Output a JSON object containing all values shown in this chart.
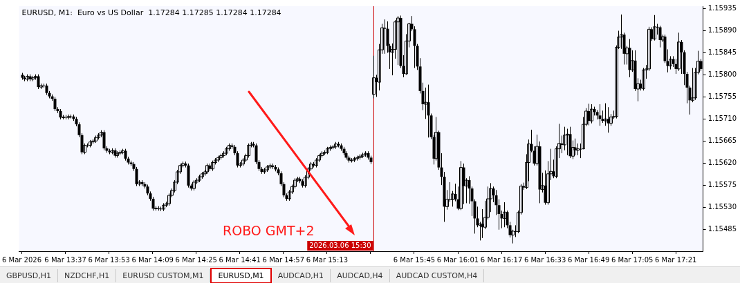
{
  "chart_data": {
    "type": "candlestick",
    "title": "EURUSD, M1:  Euro vs US Dollar  1.17284 1.17285 1.17284 1.17284",
    "color": "#000000",
    "annotations": [
      "ROBO GMT+2",
      "GBPUSD,H1",
      "NZDCHF,H1",
      "EURUSD CUSTOM,M1",
      "EURUSD,M1",
      "AUDCAD,H1",
      "AUDCAD,H4",
      "AUDCAD CUSTOM,H4"
    ],
    "xlim": [
      "2026-03-06T13:20",
      "2026-03-06T17:31"
    ],
    "xticks": [
      {
        "value": "2026-03-06T13:21",
        "label": "6 Mar 2026"
      },
      {
        "value": "2026-03-06T13:37",
        "label": "6 Mar 13:37"
      },
      {
        "value": "2026-03-06T13:53",
        "label": "6 Mar 13:53"
      },
      {
        "value": "2026-03-06T14:09",
        "label": "6 Mar 14:09"
      },
      {
        "value": "2026-03-06T14:25",
        "label": "6 Mar 14:25"
      },
      {
        "value": "2026-03-06T14:41",
        "label": "6 Mar 14:41"
      },
      {
        "value": "2026-03-06T14:57",
        "label": "6 Mar 14:57"
      },
      {
        "value": "2026-03-06T15:13",
        "label": "6 Mar 15:13"
      },
      {
        "value": "2026-03-06T15:29",
        "label": null
      },
      {
        "value": "2026-03-06T15:45",
        "label": "6 Mar 15:45"
      },
      {
        "value": "2026-03-06T16:01",
        "label": "6 Mar 16:01"
      },
      {
        "value": "2026-03-06T16:17",
        "label": "6 Mar 16:17"
      },
      {
        "value": "2026-03-06T16:33",
        "label": "6 Mar 16:33"
      },
      {
        "value": "2026-03-06T16:49",
        "label": "6 Mar 16:49"
      },
      {
        "value": "2026-03-06T17:05",
        "label": "6 Mar 17:05"
      },
      {
        "value": "2026-03-06T17:21",
        "label": "6 Mar 17:21"
      }
    ],
    "ylim": [
      1.1544,
      1.1594
    ],
    "yticks": [
      {
        "value": 1.15485,
        "label": "1.15485"
      },
      {
        "value": 1.1553,
        "label": "1.15530"
      },
      {
        "value": 1.15575,
        "label": "1.15575"
      },
      {
        "value": 1.1562,
        "label": "1.15620"
      },
      {
        "value": 1.15665,
        "label": "1.15665"
      },
      {
        "value": 1.1571,
        "label": "1.15710"
      },
      {
        "value": 1.15755,
        "label": "1.15755"
      },
      {
        "value": 1.158,
        "label": "1.15800"
      },
      {
        "value": 1.15845,
        "label": "1.15845"
      },
      {
        "value": 1.1589,
        "label": "1.15890"
      },
      {
        "value": 1.15935,
        "label": "1.15935"
      }
    ],
    "ref_lines": [
      {
        "axis": "x",
        "value": "2026-03-06T15:30",
        "label": "2026.03.06 15:30",
        "color": "#cc0000"
      }
    ],
    "x": [
      "2026-03-06T13:21",
      "2026-03-06T13:22",
      "2026-03-06T13:23",
      "2026-03-06T13:24",
      "2026-03-06T13:25",
      "2026-03-06T13:26",
      "2026-03-06T13:27",
      "2026-03-06T13:28",
      "2026-03-06T13:29",
      "2026-03-06T13:30",
      "2026-03-06T13:31",
      "2026-03-06T13:32",
      "2026-03-06T13:33",
      "2026-03-06T13:34",
      "2026-03-06T13:35",
      "2026-03-06T13:36",
      "2026-03-06T13:37",
      "2026-03-06T13:38",
      "2026-03-06T13:39",
      "2026-03-06T13:40",
      "2026-03-06T13:41",
      "2026-03-06T13:42",
      "2026-03-06T13:43",
      "2026-03-06T13:44",
      "2026-03-06T13:45",
      "2026-03-06T13:46",
      "2026-03-06T13:47",
      "2026-03-06T13:48",
      "2026-03-06T13:49",
      "2026-03-06T13:50",
      "2026-03-06T13:51",
      "2026-03-06T13:52",
      "2026-03-06T13:53",
      "2026-03-06T13:54",
      "2026-03-06T13:55",
      "2026-03-06T13:56",
      "2026-03-06T13:57",
      "2026-03-06T13:58",
      "2026-03-06T13:59",
      "2026-03-06T14:00",
      "2026-03-06T14:01",
      "2026-03-06T14:02",
      "2026-03-06T14:03",
      "2026-03-06T14:04",
      "2026-03-06T14:05",
      "2026-03-06T14:06",
      "2026-03-06T14:07",
      "2026-03-06T14:08",
      "2026-03-06T14:09",
      "2026-03-06T14:10",
      "2026-03-06T14:11",
      "2026-03-06T14:12",
      "2026-03-06T14:13",
      "2026-03-06T14:14",
      "2026-03-06T14:15",
      "2026-03-06T14:16",
      "2026-03-06T14:17",
      "2026-03-06T14:18",
      "2026-03-06T14:19",
      "2026-03-06T14:20",
      "2026-03-06T14:21",
      "2026-03-06T14:22",
      "2026-03-06T14:23",
      "2026-03-06T14:24",
      "2026-03-06T14:25",
      "2026-03-06T14:26",
      "2026-03-06T14:27",
      "2026-03-06T14:28",
      "2026-03-06T14:29",
      "2026-03-06T14:30",
      "2026-03-06T14:31",
      "2026-03-06T14:32",
      "2026-03-06T14:33",
      "2026-03-06T14:34",
      "2026-03-06T14:35",
      "2026-03-06T14:36",
      "2026-03-06T14:37",
      "2026-03-06T14:38",
      "2026-03-06T14:39",
      "2026-03-06T14:40",
      "2026-03-06T14:41",
      "2026-03-06T14:42",
      "2026-03-06T14:43",
      "2026-03-06T14:44",
      "2026-03-06T14:45",
      "2026-03-06T14:46",
      "2026-03-06T14:47",
      "2026-03-06T14:48",
      "2026-03-06T14:49",
      "2026-03-06T14:50",
      "2026-03-06T14:51",
      "2026-03-06T14:52",
      "2026-03-06T14:53",
      "2026-03-06T14:54",
      "2026-03-06T14:55",
      "2026-03-06T14:56",
      "2026-03-06T14:57",
      "2026-03-06T14:58",
      "2026-03-06T14:59",
      "2026-03-06T15:00",
      "2026-03-06T15:01",
      "2026-03-06T15:02",
      "2026-03-06T15:03",
      "2026-03-06T15:04",
      "2026-03-06T15:05",
      "2026-03-06T15:06",
      "2026-03-06T15:07",
      "2026-03-06T15:08",
      "2026-03-06T15:09",
      "2026-03-06T15:10",
      "2026-03-06T15:11",
      "2026-03-06T15:12",
      "2026-03-06T15:13",
      "2026-03-06T15:14",
      "2026-03-06T15:15",
      "2026-03-06T15:16",
      "2026-03-06T15:17",
      "2026-03-06T15:18",
      "2026-03-06T15:19",
      "2026-03-06T15:20",
      "2026-03-06T15:21",
      "2026-03-06T15:22",
      "2026-03-06T15:23",
      "2026-03-06T15:24",
      "2026-03-06T15:25",
      "2026-03-06T15:26",
      "2026-03-06T15:27",
      "2026-03-06T15:28",
      "2026-03-06T15:29",
      "2026-03-06T15:30",
      "2026-03-06T15:31",
      "2026-03-06T15:32",
      "2026-03-06T15:33",
      "2026-03-06T15:34",
      "2026-03-06T15:35",
      "2026-03-06T15:36",
      "2026-03-06T15:37",
      "2026-03-06T15:38",
      "2026-03-06T15:39",
      "2026-03-06T15:40",
      "2026-03-06T15:41",
      "2026-03-06T15:42",
      "2026-03-06T15:43",
      "2026-03-06T15:44",
      "2026-03-06T15:45",
      "2026-03-06T15:46",
      "2026-03-06T15:47",
      "2026-03-06T15:48",
      "2026-03-06T15:49",
      "2026-03-06T15:50",
      "2026-03-06T15:51",
      "2026-03-06T15:52",
      "2026-03-06T15:53",
      "2026-03-06T15:54",
      "2026-03-06T15:55",
      "2026-03-06T15:56",
      "2026-03-06T15:57",
      "2026-03-06T15:58",
      "2026-03-06T15:59",
      "2026-03-06T16:00",
      "2026-03-06T16:01",
      "2026-03-06T16:02",
      "2026-03-06T16:03",
      "2026-03-06T16:04",
      "2026-03-06T16:05",
      "2026-03-06T16:06",
      "2026-03-06T16:07",
      "2026-03-06T16:08",
      "2026-03-06T16:09",
      "2026-03-06T16:10",
      "2026-03-06T16:11",
      "2026-03-06T16:12",
      "2026-03-06T16:13",
      "2026-03-06T16:14",
      "2026-03-06T16:15",
      "2026-03-06T16:16",
      "2026-03-06T16:17",
      "2026-03-06T16:18",
      "2026-03-06T16:19",
      "2026-03-06T16:20",
      "2026-03-06T16:21",
      "2026-03-06T16:22",
      "2026-03-06T16:23",
      "2026-03-06T16:24",
      "2026-03-06T16:25",
      "2026-03-06T16:26",
      "2026-03-06T16:27",
      "2026-03-06T16:28",
      "2026-03-06T16:29",
      "2026-03-06T16:30",
      "2026-03-06T16:31",
      "2026-03-06T16:32",
      "2026-03-06T16:33",
      "2026-03-06T16:34",
      "2026-03-06T16:35",
      "2026-03-06T16:36",
      "2026-03-06T16:37",
      "2026-03-06T16:38",
      "2026-03-06T16:39",
      "2026-03-06T16:40",
      "2026-03-06T16:41",
      "2026-03-06T16:42",
      "2026-03-06T16:43",
      "2026-03-06T16:44",
      "2026-03-06T16:45",
      "2026-03-06T16:46",
      "2026-03-06T16:47",
      "2026-03-06T16:48",
      "2026-03-06T16:49",
      "2026-03-06T16:50",
      "2026-03-06T16:51",
      "2026-03-06T16:52",
      "2026-03-06T16:53",
      "2026-03-06T16:54",
      "2026-03-06T16:55",
      "2026-03-06T16:56",
      "2026-03-06T16:57",
      "2026-03-06T16:58",
      "2026-03-06T16:59",
      "2026-03-06T17:00",
      "2026-03-06T17:01",
      "2026-03-06T17:02",
      "2026-03-06T17:03",
      "2026-03-06T17:04",
      "2026-03-06T17:05",
      "2026-03-06T17:06",
      "2026-03-06T17:07",
      "2026-03-06T17:08",
      "2026-03-06T17:09",
      "2026-03-06T17:10",
      "2026-03-06T17:11",
      "2026-03-06T17:12",
      "2026-03-06T17:13",
      "2026-03-06T17:14",
      "2026-03-06T17:15",
      "2026-03-06T17:16",
      "2026-03-06T17:17",
      "2026-03-06T17:18",
      "2026-03-06T17:19",
      "2026-03-06T17:20",
      "2026-03-06T17:21",
      "2026-03-06T17:22",
      "2026-03-06T17:23",
      "2026-03-06T17:24",
      "2026-03-06T17:25",
      "2026-03-06T17:26",
      "2026-03-06T17:27",
      "2026-03-06T17:28",
      "2026-03-06T17:29",
      "2026-03-06T17:30"
    ],
    "ohlc": [
      [
        1.158,
        1.15804,
        1.1579,
        1.15794
      ],
      [
        1.15794,
        1.15798,
        1.15787,
        1.15791
      ],
      [
        1.15791,
        1.15801,
        1.15787,
        1.15797
      ],
      [
        1.15797,
        1.15801,
        1.15787,
        1.15791
      ],
      [
        1.15791,
        1.15798,
        1.15787,
        1.15794
      ],
      [
        1.15794,
        1.15801,
        1.1579,
        1.15797
      ],
      [
        1.15797,
        1.15801,
        1.15771,
        1.15775
      ],
      [
        1.15775,
        1.15782,
        1.15771,
        1.15778
      ],
      [
        1.15778,
        1.15782,
        1.15774,
        1.15778
      ],
      [
        1.15778,
        1.15782,
        1.15759,
        1.15763
      ],
      [
        1.15763,
        1.15767,
        1.15752,
        1.15756
      ],
      [
        1.15756,
        1.1576,
        1.15747,
        1.15751
      ],
      [
        1.15751,
        1.15755,
        1.15726,
        1.1573
      ],
      [
        1.1573,
        1.15734,
        1.15722,
        1.15726
      ],
      [
        1.15726,
        1.1573,
        1.15709,
        1.15713
      ],
      [
        1.15713,
        1.15718,
        1.15709,
        1.15714
      ],
      [
        1.15714,
        1.15718,
        1.15709,
        1.15713
      ],
      [
        1.15713,
        1.15719,
        1.15709,
        1.15715
      ],
      [
        1.15715,
        1.15719,
        1.15711,
        1.15715
      ],
      [
        1.15715,
        1.15719,
        1.15706,
        1.1571
      ],
      [
        1.1571,
        1.15714,
        1.15695,
        1.15699
      ],
      [
        1.15699,
        1.15703,
        1.15673,
        1.15677
      ],
      [
        1.15677,
        1.15681,
        1.15638,
        1.15642
      ],
      [
        1.15642,
        1.1566,
        1.15638,
        1.15656
      ],
      [
        1.15656,
        1.1566,
        1.15652,
        1.15656
      ],
      [
        1.15656,
        1.15667,
        1.15652,
        1.15663
      ],
      [
        1.15663,
        1.15669,
        1.15659,
        1.15665
      ],
      [
        1.15665,
        1.15676,
        1.15661,
        1.15672
      ],
      [
        1.15672,
        1.15681,
        1.15668,
        1.15677
      ],
      [
        1.15677,
        1.15687,
        1.15673,
        1.15683
      ],
      [
        1.15683,
        1.15687,
        1.15646,
        1.1565
      ],
      [
        1.1565,
        1.15654,
        1.15641,
        1.15645
      ],
      [
        1.15645,
        1.15649,
        1.15638,
        1.15642
      ],
      [
        1.15642,
        1.1565,
        1.15638,
        1.15646
      ],
      [
        1.15646,
        1.1565,
        1.15631,
        1.15635
      ],
      [
        1.15635,
        1.15644,
        1.15631,
        1.1564
      ],
      [
        1.1564,
        1.15646,
        1.15636,
        1.15642
      ],
      [
        1.15642,
        1.15649,
        1.15638,
        1.15645
      ],
      [
        1.15645,
        1.15649,
        1.15625,
        1.15629
      ],
      [
        1.15629,
        1.15633,
        1.15617,
        1.15621
      ],
      [
        1.15621,
        1.15625,
        1.15614,
        1.15618
      ],
      [
        1.15618,
        1.15622,
        1.15604,
        1.15608
      ],
      [
        1.15608,
        1.15612,
        1.15573,
        1.15577
      ],
      [
        1.15577,
        1.15585,
        1.15573,
        1.15581
      ],
      [
        1.15581,
        1.15585,
        1.15573,
        1.15577
      ],
      [
        1.15577,
        1.15581,
        1.15568,
        1.15572
      ],
      [
        1.15572,
        1.15576,
        1.15554,
        1.15558
      ],
      [
        1.15558,
        1.15562,
        1.15543,
        1.15547
      ],
      [
        1.15547,
        1.15551,
        1.15523,
        1.15527
      ],
      [
        1.15527,
        1.15532,
        1.15523,
        1.15528
      ],
      [
        1.15528,
        1.15532,
        1.15523,
        1.15527
      ],
      [
        1.15527,
        1.15531,
        1.15522,
        1.15526
      ],
      [
        1.15526,
        1.15538,
        1.15522,
        1.15534
      ],
      [
        1.15534,
        1.15541,
        1.1553,
        1.15537
      ],
      [
        1.15537,
        1.15558,
        1.15533,
        1.15554
      ],
      [
        1.15554,
        1.15568,
        1.1555,
        1.15564
      ],
      [
        1.15564,
        1.15585,
        1.1556,
        1.15581
      ],
      [
        1.15581,
        1.15606,
        1.15577,
        1.15602
      ],
      [
        1.15602,
        1.15619,
        1.15598,
        1.15615
      ],
      [
        1.15615,
        1.15623,
        1.15611,
        1.15619
      ],
      [
        1.15619,
        1.15623,
        1.15611,
        1.15615
      ],
      [
        1.15615,
        1.15619,
        1.1557,
        1.15574
      ],
      [
        1.15574,
        1.15578,
        1.15564,
        1.15568
      ],
      [
        1.15568,
        1.15585,
        1.15564,
        1.15581
      ],
      [
        1.15581,
        1.15589,
        1.15577,
        1.15585
      ],
      [
        1.15585,
        1.15596,
        1.15581,
        1.15592
      ],
      [
        1.15592,
        1.15602,
        1.15588,
        1.15598
      ],
      [
        1.15598,
        1.15606,
        1.15594,
        1.15602
      ],
      [
        1.15602,
        1.15619,
        1.15598,
        1.15615
      ],
      [
        1.15615,
        1.15619,
        1.15604,
        1.15608
      ],
      [
        1.15608,
        1.15625,
        1.15604,
        1.15621
      ],
      [
        1.15621,
        1.1563,
        1.15617,
        1.15626
      ],
      [
        1.15626,
        1.15635,
        1.15622,
        1.15631
      ],
      [
        1.15631,
        1.15639,
        1.15627,
        1.15635
      ],
      [
        1.15635,
        1.15644,
        1.15631,
        1.1564
      ],
      [
        1.1564,
        1.15653,
        1.15636,
        1.15649
      ],
      [
        1.15649,
        1.1566,
        1.15645,
        1.15656
      ],
      [
        1.15656,
        1.1566,
        1.15649,
        1.15653
      ],
      [
        1.15653,
        1.15657,
        1.15636,
        1.1564
      ],
      [
        1.1564,
        1.15644,
        1.15611,
        1.15615
      ],
      [
        1.15615,
        1.15622,
        1.15611,
        1.15618
      ],
      [
        1.15618,
        1.1563,
        1.15614,
        1.15626
      ],
      [
        1.15626,
        1.15639,
        1.15622,
        1.15635
      ],
      [
        1.15635,
        1.1566,
        1.15631,
        1.15656
      ],
      [
        1.15656,
        1.15663,
        1.15652,
        1.15659
      ],
      [
        1.15659,
        1.15663,
        1.15652,
        1.15656
      ],
      [
        1.15656,
        1.1566,
        1.15618,
        1.15622
      ],
      [
        1.15622,
        1.15626,
        1.15604,
        1.15608
      ],
      [
        1.15608,
        1.15612,
        1.15598,
        1.15602
      ],
      [
        1.15602,
        1.1561,
        1.15598,
        1.15606
      ],
      [
        1.15606,
        1.15616,
        1.15602,
        1.15612
      ],
      [
        1.15612,
        1.15619,
        1.15608,
        1.15615
      ],
      [
        1.15615,
        1.15619,
        1.15608,
        1.15612
      ],
      [
        1.15612,
        1.15616,
        1.15603,
        1.15607
      ],
      [
        1.15607,
        1.15611,
        1.15595,
        1.15599
      ],
      [
        1.15599,
        1.15603,
        1.15573,
        1.15577
      ],
      [
        1.15577,
        1.15581,
        1.1555,
        1.15554
      ],
      [
        1.15554,
        1.15558,
        1.15543,
        1.15547
      ],
      [
        1.15547,
        1.15565,
        1.15543,
        1.15561
      ],
      [
        1.15561,
        1.15576,
        1.15557,
        1.15572
      ],
      [
        1.15572,
        1.15589,
        1.15568,
        1.15585
      ],
      [
        1.15585,
        1.15592,
        1.15581,
        1.15588
      ],
      [
        1.15588,
        1.15592,
        1.15579,
        1.15583
      ],
      [
        1.15583,
        1.15587,
        1.1557,
        1.15574
      ],
      [
        1.15574,
        1.15595,
        1.1557,
        1.15591
      ],
      [
        1.15591,
        1.15612,
        1.15587,
        1.15608
      ],
      [
        1.15608,
        1.15622,
        1.15604,
        1.15618
      ],
      [
        1.15618,
        1.15622,
        1.15611,
        1.15615
      ],
      [
        1.15615,
        1.1563,
        1.15611,
        1.15626
      ],
      [
        1.15626,
        1.15639,
        1.15622,
        1.15635
      ],
      [
        1.15635,
        1.15644,
        1.15631,
        1.1564
      ],
      [
        1.1564,
        1.15646,
        1.15636,
        1.15642
      ],
      [
        1.15642,
        1.15653,
        1.15638,
        1.15649
      ],
      [
        1.15649,
        1.15656,
        1.15645,
        1.15652
      ],
      [
        1.15652,
        1.15657,
        1.15648,
        1.15653
      ],
      [
        1.15653,
        1.15663,
        1.15649,
        1.15659
      ],
      [
        1.15659,
        1.15663,
        1.15652,
        1.15656
      ],
      [
        1.15656,
        1.1566,
        1.15645,
        1.15649
      ],
      [
        1.15649,
        1.15653,
        1.15636,
        1.1564
      ],
      [
        1.1564,
        1.15644,
        1.15627,
        1.15631
      ],
      [
        1.15631,
        1.15635,
        1.15621,
        1.15625
      ],
      [
        1.15625,
        1.1563,
        1.15621,
        1.15626
      ],
      [
        1.15626,
        1.15633,
        1.15622,
        1.15629
      ],
      [
        1.15629,
        1.15635,
        1.15625,
        1.15631
      ],
      [
        1.15631,
        1.15638,
        1.15627,
        1.15634
      ],
      [
        1.15634,
        1.15641,
        1.1563,
        1.15637
      ],
      [
        1.15637,
        1.15644,
        1.15633,
        1.1564
      ],
      [
        1.1564,
        1.15644,
        1.15627,
        1.15631
      ],
      [
        1.15631,
        1.15635,
        1.15618,
        1.15622
      ],
      [
        1.1576,
        1.15839,
        1.15752,
        1.15794
      ],
      [
        1.15794,
        1.158,
        1.15755,
        1.15785
      ],
      [
        1.15785,
        1.15863,
        1.15768,
        1.15851
      ],
      [
        1.15851,
        1.15904,
        1.15843,
        1.15896
      ],
      [
        1.15896,
        1.15913,
        1.15843,
        1.15894
      ],
      [
        1.15894,
        1.15909,
        1.15845,
        1.15859
      ],
      [
        1.15859,
        1.15863,
        1.15812,
        1.15846
      ],
      [
        1.15846,
        1.15864,
        1.15799,
        1.15852
      ],
      [
        1.15852,
        1.15912,
        1.15833,
        1.15908
      ],
      [
        1.15908,
        1.1592,
        1.1582,
        1.15916
      ],
      [
        1.15916,
        1.15921,
        1.15814,
        1.15818
      ],
      [
        1.15818,
        1.1584,
        1.15795,
        1.15802
      ],
      [
        1.15802,
        1.15883,
        1.158,
        1.15869
      ],
      [
        1.15869,
        1.15906,
        1.15856,
        1.15904
      ],
      [
        1.15904,
        1.1592,
        1.15889,
        1.15893
      ],
      [
        1.15893,
        1.15899,
        1.15814,
        1.15859
      ],
      [
        1.15859,
        1.15863,
        1.1581,
        1.15817
      ],
      [
        1.15817,
        1.15834,
        1.15762,
        1.15767
      ],
      [
        1.15767,
        1.15784,
        1.15728,
        1.1574
      ],
      [
        1.1574,
        1.15774,
        1.1571,
        1.15744
      ],
      [
        1.15744,
        1.1578,
        1.15672,
        1.15717
      ],
      [
        1.15717,
        1.15721,
        1.15669,
        1.15673
      ],
      [
        1.15673,
        1.15677,
        1.15617,
        1.15629
      ],
      [
        1.15629,
        1.15714,
        1.15625,
        1.15683
      ],
      [
        1.15683,
        1.15686,
        1.15606,
        1.15611
      ],
      [
        1.15611,
        1.1564,
        1.15575,
        1.15592
      ],
      [
        1.15592,
        1.15602,
        1.155,
        1.15531
      ],
      [
        1.15531,
        1.15565,
        1.15525,
        1.15546
      ],
      [
        1.15546,
        1.15581,
        1.15541,
        1.15545
      ],
      [
        1.15545,
        1.15563,
        1.15531,
        1.15557
      ],
      [
        1.15557,
        1.15578,
        1.15542,
        1.15546
      ],
      [
        1.15546,
        1.15572,
        1.15524,
        1.15527
      ],
      [
        1.15527,
        1.15624,
        1.15524,
        1.15611
      ],
      [
        1.15611,
        1.15619,
        1.15536,
        1.15573
      ],
      [
        1.15573,
        1.15589,
        1.15538,
        1.15585
      ],
      [
        1.15585,
        1.15593,
        1.15537,
        1.15568
      ],
      [
        1.15568,
        1.15572,
        1.15512,
        1.15542
      ],
      [
        1.15542,
        1.15546,
        1.15476,
        1.15507
      ],
      [
        1.15507,
        1.15531,
        1.15489,
        1.15493
      ],
      [
        1.15493,
        1.155,
        1.15462,
        1.15496
      ],
      [
        1.15496,
        1.15526,
        1.15467,
        1.15489
      ],
      [
        1.15489,
        1.15543,
        1.15485,
        1.15509
      ],
      [
        1.15509,
        1.15572,
        1.15505,
        1.15547
      ],
      [
        1.15547,
        1.15579,
        1.1552,
        1.15568
      ],
      [
        1.15568,
        1.15572,
        1.1554,
        1.15554
      ],
      [
        1.15554,
        1.15565,
        1.15514,
        1.15534
      ],
      [
        1.15534,
        1.15546,
        1.15484,
        1.15516
      ],
      [
        1.15516,
        1.15523,
        1.15487,
        1.15507
      ],
      [
        1.15507,
        1.1554,
        1.15489,
        1.1552
      ],
      [
        1.1552,
        1.15523,
        1.15487,
        1.15493
      ],
      [
        1.15493,
        1.155,
        1.15468,
        1.15473
      ],
      [
        1.15473,
        1.15484,
        1.15456,
        1.15481
      ],
      [
        1.15481,
        1.15493,
        1.15469,
        1.1548
      ],
      [
        1.1548,
        1.15523,
        1.15477,
        1.15519
      ],
      [
        1.15519,
        1.15577,
        1.15515,
        1.15573
      ],
      [
        1.15573,
        1.1558,
        1.15565,
        1.1557
      ],
      [
        1.1557,
        1.15638,
        1.15567,
        1.15621
      ],
      [
        1.15621,
        1.15668,
        1.15583,
        1.15659
      ],
      [
        1.15659,
        1.15688,
        1.15642,
        1.15645
      ],
      [
        1.15645,
        1.15654,
        1.15615,
        1.15619
      ],
      [
        1.15619,
        1.15678,
        1.15615,
        1.15654
      ],
      [
        1.15654,
        1.15664,
        1.15538,
        1.15566
      ],
      [
        1.15566,
        1.156,
        1.1556,
        1.15574
      ],
      [
        1.15574,
        1.15605,
        1.15535,
        1.15539
      ],
      [
        1.15539,
        1.15624,
        1.15535,
        1.15598
      ],
      [
        1.15598,
        1.15649,
        1.15585,
        1.15603
      ],
      [
        1.15603,
        1.15627,
        1.15589,
        1.15593
      ],
      [
        1.15593,
        1.15654,
        1.15589,
        1.15649
      ],
      [
        1.15649,
        1.157,
        1.1563,
        1.1566
      ],
      [
        1.1566,
        1.15676,
        1.1564,
        1.15657
      ],
      [
        1.15657,
        1.15694,
        1.15646,
        1.15677
      ],
      [
        1.15677,
        1.1569,
        1.15636,
        1.15679
      ],
      [
        1.15679,
        1.15694,
        1.1563,
        1.15634
      ],
      [
        1.15634,
        1.15666,
        1.15628,
        1.15652
      ],
      [
        1.15652,
        1.1567,
        1.15636,
        1.15646
      ],
      [
        1.15646,
        1.1566,
        1.15636,
        1.15649
      ],
      [
        1.15649,
        1.1566,
        1.1563,
        1.15649
      ],
      [
        1.15649,
        1.15714,
        1.15648,
        1.15699
      ],
      [
        1.15699,
        1.15732,
        1.15695,
        1.15726
      ],
      [
        1.15726,
        1.15741,
        1.15697,
        1.15706
      ],
      [
        1.15706,
        1.1574,
        1.15701,
        1.1573
      ],
      [
        1.1573,
        1.15735,
        1.15717,
        1.15724
      ],
      [
        1.15724,
        1.15728,
        1.15709,
        1.15717
      ],
      [
        1.15717,
        1.1574,
        1.15696,
        1.1571
      ],
      [
        1.1571,
        1.15727,
        1.15702,
        1.15706
      ],
      [
        1.15706,
        1.15742,
        1.15696,
        1.1571
      ],
      [
        1.1571,
        1.15734,
        1.15682,
        1.15701
      ],
      [
        1.15701,
        1.1572,
        1.15696,
        1.15714
      ],
      [
        1.15714,
        1.15727,
        1.1571,
        1.15715
      ],
      [
        1.15715,
        1.1586,
        1.15711,
        1.15856
      ],
      [
        1.15856,
        1.1589,
        1.15853,
        1.15877
      ],
      [
        1.15877,
        1.15923,
        1.15853,
        1.15882
      ],
      [
        1.15882,
        1.15886,
        1.15821,
        1.15843
      ],
      [
        1.15843,
        1.15859,
        1.15821,
        1.15855
      ],
      [
        1.15855,
        1.15873,
        1.15795,
        1.1581
      ],
      [
        1.1581,
        1.1585,
        1.15806,
        1.15829
      ],
      [
        1.15829,
        1.1585,
        1.15767,
        1.15771
      ],
      [
        1.15771,
        1.15793,
        1.15746,
        1.15782
      ],
      [
        1.15782,
        1.1579,
        1.15768,
        1.15772
      ],
      [
        1.15772,
        1.15814,
        1.15768,
        1.1581
      ],
      [
        1.1581,
        1.1582,
        1.15792,
        1.15812
      ],
      [
        1.15812,
        1.15898,
        1.15808,
        1.15893
      ],
      [
        1.15893,
        1.15897,
        1.15869,
        1.15873
      ],
      [
        1.15873,
        1.15922,
        1.1587,
        1.15898
      ],
      [
        1.15898,
        1.15904,
        1.15882,
        1.15897
      ],
      [
        1.15897,
        1.159,
        1.15856,
        1.15871
      ],
      [
        1.15871,
        1.15882,
        1.15867,
        1.15878
      ],
      [
        1.15878,
        1.15882,
        1.15824,
        1.15828
      ],
      [
        1.15828,
        1.15852,
        1.15805,
        1.15818
      ],
      [
        1.15818,
        1.15838,
        1.15811,
        1.15832
      ],
      [
        1.15832,
        1.15838,
        1.15816,
        1.15822
      ],
      [
        1.15822,
        1.15833,
        1.15802,
        1.15812
      ],
      [
        1.15812,
        1.15886,
        1.15808,
        1.15867
      ],
      [
        1.15867,
        1.15871,
        1.15802,
        1.15846
      ],
      [
        1.15846,
        1.1585,
        1.15779,
        1.15802
      ],
      [
        1.15802,
        1.15806,
        1.15742,
        1.15774
      ],
      [
        1.15774,
        1.15778,
        1.15719,
        1.15748
      ],
      [
        1.15748,
        1.15814,
        1.15744,
        1.15753
      ],
      [
        1.15753,
        1.15814,
        1.15749,
        1.15805
      ],
      [
        1.15805,
        1.15849,
        1.15801,
        1.15828
      ],
      [
        1.15828,
        1.15832,
        1.15808,
        1.15812
      ]
    ]
  }
}
